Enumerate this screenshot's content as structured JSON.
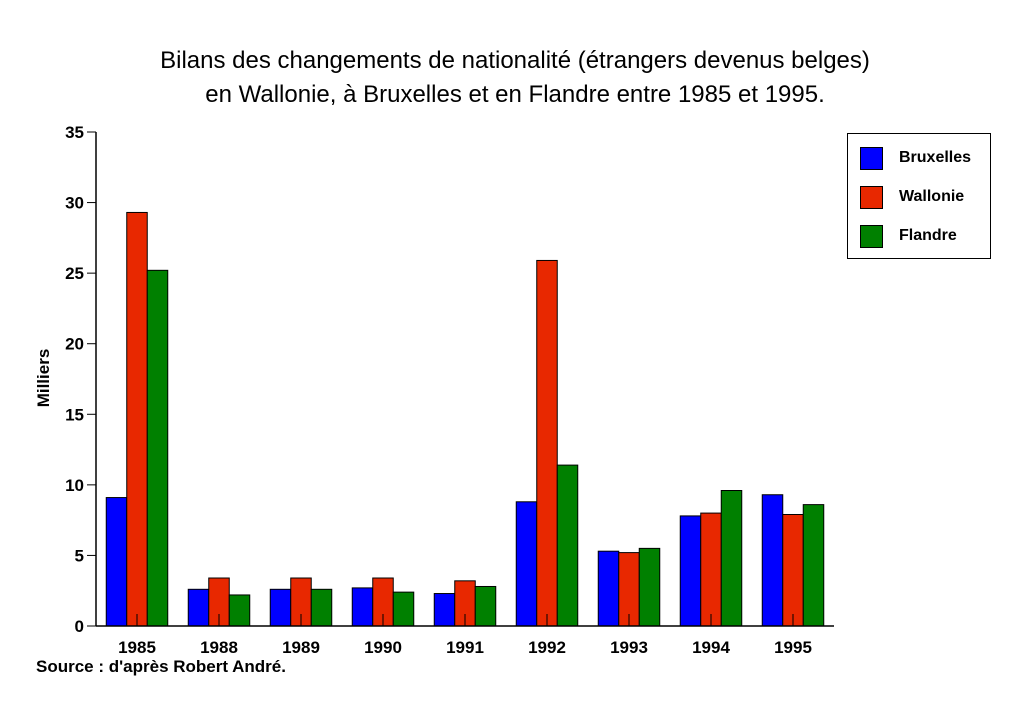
{
  "chart_data": {
    "type": "bar",
    "title": [
      "Bilans des changements de nationalité (étrangers devenus belges)",
      "en Wallonie, à Bruxelles et en Flandre entre 1985 et 1995."
    ],
    "xlabel": "",
    "ylabel": "Milliers",
    "ylim": [
      0,
      35
    ],
    "yticks": [
      0,
      5,
      10,
      15,
      20,
      25,
      30,
      35
    ],
    "categories": [
      "1985",
      "1988",
      "1989",
      "1990",
      "1991",
      "1992",
      "1993",
      "1994",
      "1995"
    ],
    "series": [
      {
        "name": "Bruxelles",
        "color": "#0000ff",
        "values": [
          9.1,
          2.6,
          2.6,
          2.7,
          2.3,
          8.8,
          5.3,
          7.8,
          9.3
        ]
      },
      {
        "name": "Wallonie",
        "color": "#e82800",
        "values": [
          29.3,
          3.4,
          3.4,
          3.4,
          3.2,
          25.9,
          5.2,
          8.0,
          7.9
        ]
      },
      {
        "name": "Flandre",
        "color": "#008000",
        "values": [
          25.2,
          2.2,
          2.6,
          2.4,
          2.8,
          11.4,
          5.5,
          9.6,
          8.6
        ]
      }
    ],
    "legend": "right",
    "grid": false
  },
  "source": "Source : d'après Robert André."
}
